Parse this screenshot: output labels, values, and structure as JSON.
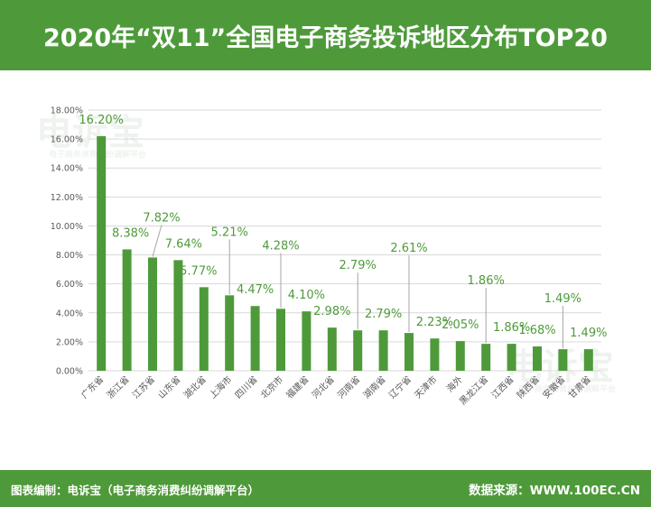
{
  "header": {
    "title": "2020年“双11”全国电子商务投诉地区分布TOP20"
  },
  "footer": {
    "compiled_by": "图表编制：电诉宝（电子商务消费纠纷调解平台）",
    "source": "数据来源：WWW.100EC.CN"
  },
  "watermark": {
    "text": "电诉宝",
    "subtext": "电子商务消费纠纷调解平台"
  },
  "colors": {
    "header_bg": "#4e9a3a",
    "bar": "#4e9a3a",
    "label": "#4e9a3a",
    "axis_text": "#595959",
    "grid": "#d9d9d9"
  },
  "chart_data": {
    "type": "bar",
    "title": "",
    "xlabel": "",
    "ylabel": "",
    "ylim": [
      0,
      18
    ],
    "grid": true,
    "legend": "none",
    "y_ticks": [
      "0.00%",
      "2.00%",
      "4.00%",
      "6.00%",
      "8.00%",
      "10.00%",
      "12.00%",
      "14.00%",
      "16.00%",
      "18.00%"
    ],
    "categories": [
      "广东省",
      "浙江省",
      "江苏省",
      "山东省",
      "湖北省",
      "上海市",
      "四川省",
      "北京市",
      "福建省",
      "河北省",
      "河南省",
      "湖南省",
      "辽宁省",
      "天津市",
      "海外",
      "黑龙江省",
      "江西省",
      "陕西省",
      "安徽省",
      "甘肃省"
    ],
    "values": [
      16.2,
      8.38,
      7.82,
      7.64,
      5.77,
      5.21,
      4.47,
      4.28,
      4.1,
      2.98,
      2.79,
      2.79,
      2.61,
      2.23,
      2.05,
      1.86,
      1.86,
      1.68,
      1.49,
      1.49
    ],
    "data_labels": [
      "16.20%",
      "8.38%",
      "7.82%",
      "7.64%",
      "5.77%",
      "5.21%",
      "4.47%",
      "4.28%",
      "4.10%",
      "2.98%",
      "2.79%",
      "2.79%",
      "2.61%",
      "2.23%",
      "2.05%",
      "1.86%",
      "1.86%",
      "1.68%",
      "1.49%",
      "1.49%"
    ]
  }
}
